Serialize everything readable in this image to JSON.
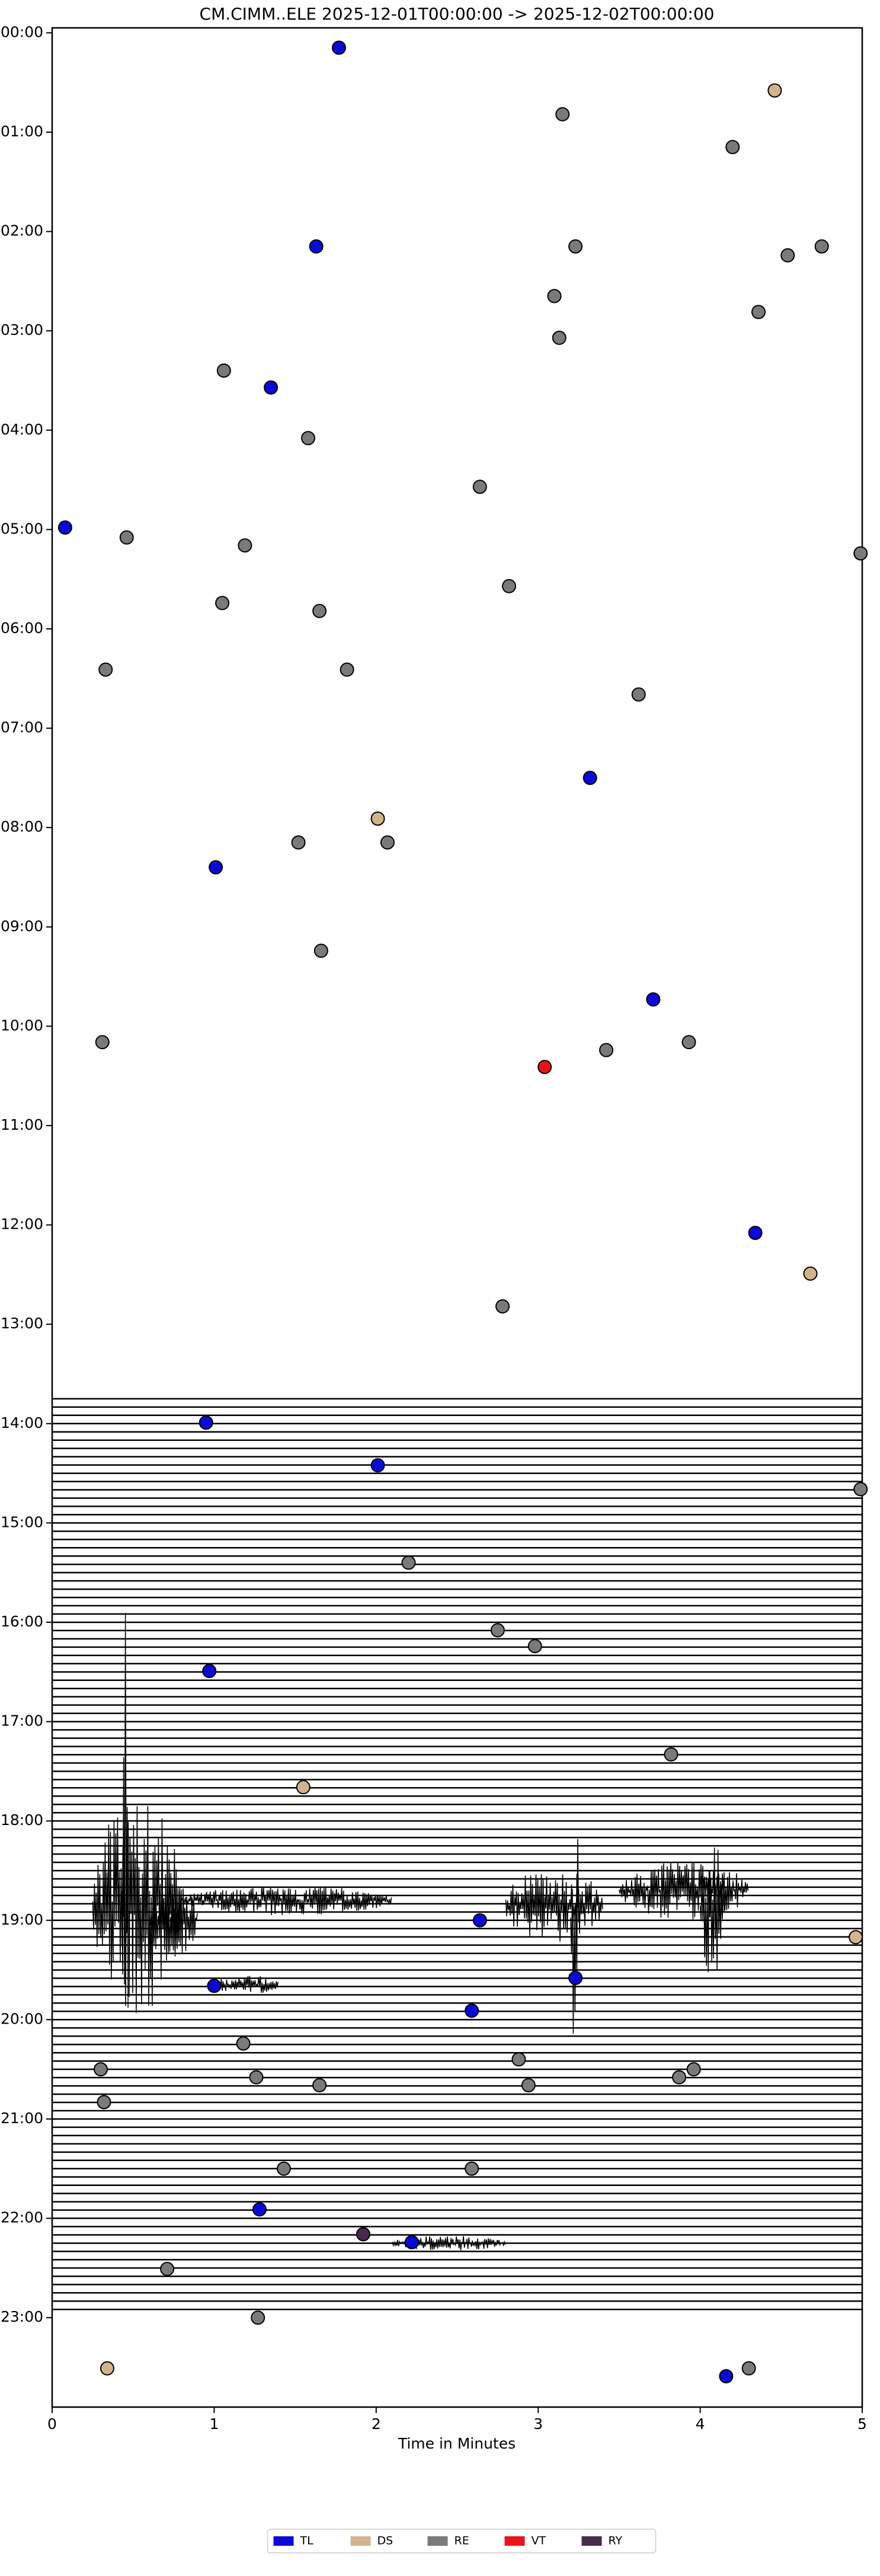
{
  "chart_data": {
    "type": "scatter",
    "title": "CM.CIMM..ELE  2025-12-01T00:00:00 -> 2025-12-02T00:00:00",
    "xlabel": "Time in Minutes",
    "xlim": [
      0,
      5
    ],
    "xticks": [
      0,
      1,
      2,
      3,
      4,
      5
    ],
    "ylim": [
      23.9,
      -0.05
    ],
    "yticks": [
      {
        "value": 0,
        "label": "00:00"
      },
      {
        "value": 1,
        "label": "01:00"
      },
      {
        "value": 2,
        "label": "02:00"
      },
      {
        "value": 3,
        "label": "03:00"
      },
      {
        "value": 4,
        "label": "04:00"
      },
      {
        "value": 5,
        "label": "05:00"
      },
      {
        "value": 6,
        "label": "06:00"
      },
      {
        "value": 7,
        "label": "07:00"
      },
      {
        "value": 8,
        "label": "08:00"
      },
      {
        "value": 9,
        "label": "09:00"
      },
      {
        "value": 10,
        "label": "10:00"
      },
      {
        "value": 11,
        "label": "11:00"
      },
      {
        "value": 12,
        "label": "12:00"
      },
      {
        "value": 13,
        "label": "13:00"
      },
      {
        "value": 14,
        "label": "14:00"
      },
      {
        "value": 15,
        "label": "15:00"
      },
      {
        "value": 16,
        "label": "16:00"
      },
      {
        "value": 17,
        "label": "17:00"
      },
      {
        "value": 18,
        "label": "18:00"
      },
      {
        "value": 19,
        "label": "19:00"
      },
      {
        "value": 20,
        "label": "20:00"
      },
      {
        "value": 21,
        "label": "21:00"
      },
      {
        "value": 22,
        "label": "22:00"
      },
      {
        "value": 23,
        "label": "23:00"
      }
    ],
    "legend": "lower center",
    "trace_range": [
      13.75,
      22.92
    ],
    "bursts": [
      {
        "x": [
          0.25,
          0.8
        ],
        "y": 18.85,
        "amp": 1.1
      },
      {
        "x": [
          0.43,
          0.47
        ],
        "y": 18.85,
        "amp": 3.0
      },
      {
        "x": [
          0.8,
          2.1
        ],
        "y": 18.8,
        "amp": 0.15
      },
      {
        "x": [
          0.6,
          0.9
        ],
        "y": 19.0,
        "amp": 0.4
      },
      {
        "x": [
          2.8,
          3.4
        ],
        "y": 18.85,
        "amp": 0.4
      },
      {
        "x": [
          3.2,
          3.25
        ],
        "y": 19.0,
        "amp": 1.3
      },
      {
        "x": [
          3.5,
          4.3
        ],
        "y": 18.7,
        "amp": 0.3
      },
      {
        "x": [
          4.0,
          4.15
        ],
        "y": 18.9,
        "amp": 0.7
      },
      {
        "x": [
          1.0,
          1.4
        ],
        "y": 19.65,
        "amp": 0.1
      },
      {
        "x": [
          2.1,
          2.8
        ],
        "y": 22.25,
        "amp": 0.08
      }
    ],
    "series": [
      {
        "name": "TL",
        "color": "#0a0ad8",
        "x": [
          1.77,
          1.63,
          1.35,
          0.08,
          3.32,
          1.01,
          3.71,
          4.34,
          0.95,
          2.01,
          0.97,
          2.64,
          3.23,
          1.0,
          2.59,
          1.28,
          2.22,
          4.16
        ],
        "values": [
          0.15,
          2.15,
          3.57,
          4.98,
          7.5,
          8.4,
          9.73,
          12.08,
          13.99,
          14.42,
          16.49,
          19.0,
          19.58,
          19.66,
          19.91,
          21.91,
          22.24,
          23.59
        ]
      },
      {
        "name": "DS",
        "color": "#d2b48c",
        "x": [
          4.46,
          2.01,
          4.68,
          1.55,
          4.96,
          0.34
        ],
        "values": [
          0.58,
          7.91,
          12.49,
          17.66,
          19.17,
          23.51
        ]
      },
      {
        "name": "RE",
        "color": "#7a7a7a",
        "x": [
          3.15,
          4.2,
          3.23,
          4.54,
          4.75,
          3.1,
          4.36,
          3.13,
          1.06,
          1.58,
          2.64,
          0.46,
          1.19,
          4.99,
          2.82,
          1.05,
          1.65,
          0.33,
          1.82,
          3.62,
          1.52,
          2.07,
          1.66,
          0.31,
          3.93,
          3.42,
          2.78,
          4.99,
          2.2,
          2.75,
          2.98,
          3.82,
          1.18,
          2.88,
          0.3,
          1.26,
          3.96,
          1.65,
          2.94,
          3.87,
          0.32,
          1.43,
          2.59,
          0.71,
          1.27,
          4.3
        ],
        "values": [
          0.82,
          1.15,
          2.15,
          2.24,
          2.15,
          2.65,
          2.81,
          3.07,
          3.4,
          4.08,
          4.57,
          5.08,
          5.16,
          5.24,
          5.57,
          5.74,
          5.82,
          6.41,
          6.41,
          6.66,
          8.15,
          8.15,
          9.24,
          10.16,
          10.16,
          10.24,
          12.82,
          14.66,
          15.4,
          16.08,
          16.24,
          17.33,
          20.24,
          20.4,
          20.5,
          20.58,
          20.5,
          20.66,
          20.66,
          20.58,
          20.83,
          21.5,
          21.5,
          22.51,
          23.0,
          23.51
        ]
      },
      {
        "name": "VT",
        "color": "#e8141a",
        "x": [
          3.04
        ],
        "values": [
          10.41
        ]
      },
      {
        "name": "RY",
        "color": "#4a2a4e",
        "x": [
          1.92
        ],
        "values": [
          22.16
        ]
      }
    ]
  }
}
